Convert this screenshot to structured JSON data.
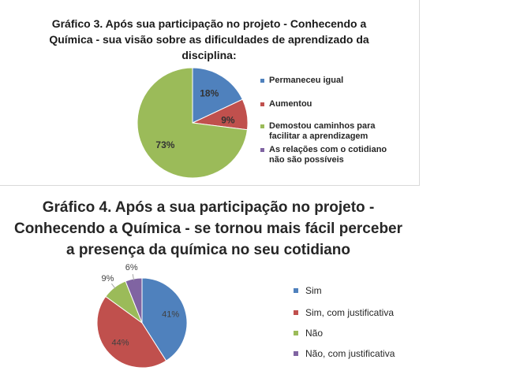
{
  "chart_data": [
    {
      "type": "pie",
      "title": "Gráfico 3. Após sua participação no projeto - Conhecendo a Química - sua visão sobre as dificuldades de aprendizado da disciplina:",
      "categories": [
        "Permaneceu igual",
        "Aumentou",
        "Demostou caminhos para facilitar a aprendizagem",
        "As relações com o cotidiano não são possíveis"
      ],
      "values": [
        18,
        9,
        73,
        0
      ],
      "labels": [
        "18%",
        "9%",
        "73%",
        ""
      ],
      "colors": [
        "#4f81bd",
        "#c0504d",
        "#9bbb59",
        "#8064a2"
      ],
      "legend": "right"
    },
    {
      "type": "pie",
      "title": "Gráfico 4. Após a sua participação no projeto - Conhecendo a Química - se tornou mais fácil perceber a presença da química no seu cotidiano",
      "categories": [
        "Sim",
        "Sim, com justificativa",
        "Não",
        "Não, com justificativa"
      ],
      "values": [
        41,
        44,
        9,
        6
      ],
      "labels": [
        "41%",
        "44%",
        "9%",
        "6%"
      ],
      "colors": [
        "#4f81bd",
        "#c0504d",
        "#9bbb59",
        "#8064a2"
      ],
      "legend": "right"
    }
  ]
}
